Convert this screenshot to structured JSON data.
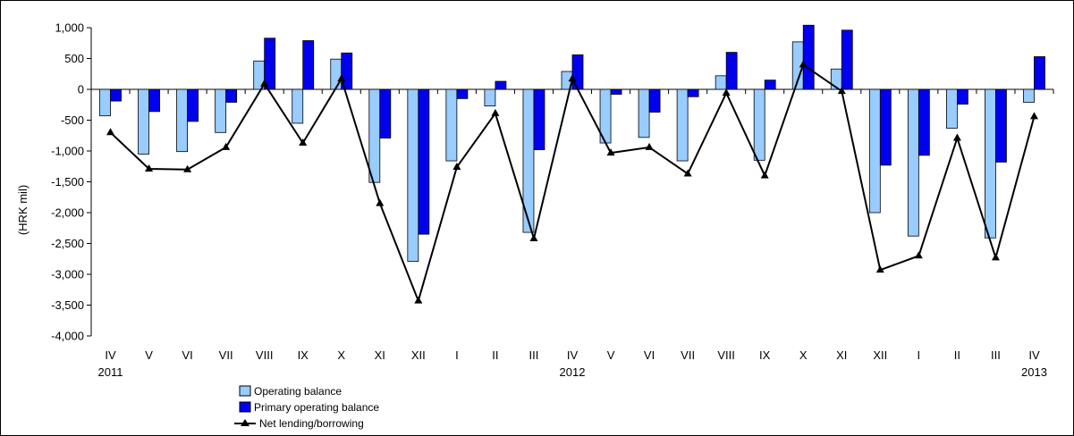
{
  "chart_data": {
    "type": "bar",
    "ylabel": "(HRK mil)",
    "ylim": [
      -4000,
      1000
    ],
    "ytick_step": 500,
    "ytick_labels": [
      "1,000",
      "500",
      "0",
      "-500",
      "-1,000",
      "-1,500",
      "-2,000",
      "-2,500",
      "-3,000",
      "-3,500",
      "-4,000"
    ],
    "categories": [
      "IV",
      "V",
      "VI",
      "VII",
      "VIII",
      "IX",
      "X",
      "XI",
      "XII",
      "I",
      "II",
      "III",
      "IV",
      "V",
      "VI",
      "VII",
      "VIII",
      "IX",
      "X",
      "XI",
      "XII",
      "I",
      "II",
      "III",
      "IV"
    ],
    "year_labels": [
      {
        "index": 0,
        "label": "2011"
      },
      {
        "index": 12,
        "label": "2012"
      },
      {
        "index": 24,
        "label": "2013"
      }
    ],
    "grid": false,
    "legend_position": "bottom-center",
    "series": [
      {
        "name": "Operating balance",
        "kind": "bar",
        "color": "#99ccff",
        "values": [
          -430,
          -1050,
          -1010,
          -700,
          460,
          -550,
          490,
          -1510,
          -2790,
          -1160,
          -270,
          -2320,
          290,
          -870,
          -780,
          -1160,
          220,
          -1150,
          770,
          330,
          -2000,
          -2380,
          -630,
          -2410,
          -210
        ]
      },
      {
        "name": "Primary operating balance",
        "kind": "bar",
        "color": "#0000ee",
        "values": [
          -190,
          -360,
          -520,
          -210,
          830,
          790,
          590,
          -790,
          -2350,
          -150,
          130,
          -980,
          560,
          -80,
          -370,
          -120,
          600,
          150,
          1040,
          960,
          -1230,
          -1070,
          -240,
          -1180,
          530
        ]
      },
      {
        "name": "Net lending/borrowing",
        "kind": "line",
        "color": "#000000",
        "values": [
          -700,
          -1290,
          -1300,
          -940,
          90,
          -870,
          170,
          -1850,
          -3430,
          -1260,
          -390,
          -2420,
          170,
          -1030,
          -940,
          -1370,
          -60,
          -1400,
          400,
          -30,
          -2930,
          -2700,
          -790,
          -2730,
          -440
        ]
      }
    ]
  }
}
